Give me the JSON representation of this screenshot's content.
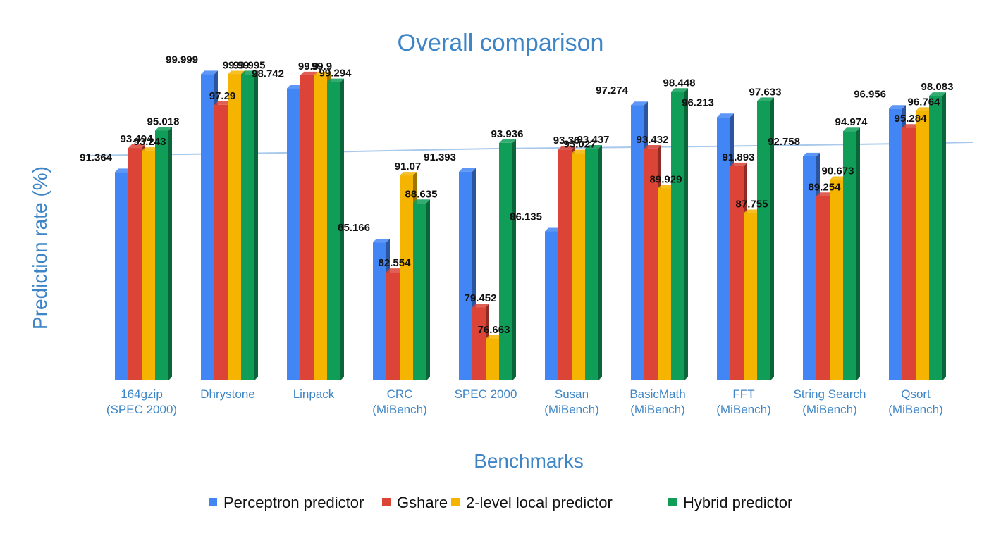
{
  "chart_data": {
    "type": "bar",
    "title": "Overall comparison",
    "xlabel": "Benchmarks",
    "ylabel": "Prediction rate (%)",
    "ylim": [
      73,
      103
    ],
    "grid": false,
    "legend_position": "bottom",
    "categories": [
      [
        "164gzip",
        "(SPEC 2000)"
      ],
      [
        "Dhrystone"
      ],
      [
        "Linpack"
      ],
      [
        "CRC",
        "(MiBench)"
      ],
      [
        "SPEC 2000"
      ],
      [
        "Susan",
        "(MiBench)"
      ],
      [
        "BasicMath",
        "(MiBench)"
      ],
      [
        "FFT",
        "(MiBench)"
      ],
      [
        "String Search",
        "(MiBench)"
      ],
      [
        "Qsort",
        "(MiBench)"
      ]
    ],
    "series": [
      {
        "name": "Perceptron predictor",
        "color": "#4285f4",
        "values": [
          91.364,
          99.999,
          98.742,
          85.166,
          91.393,
          86.135,
          97.274,
          96.213,
          92.758,
          96.956
        ],
        "labels": [
          "91.364",
          "99.999",
          "98.742",
          "85.166",
          "91.393",
          "86.135",
          "97.274",
          "96.213",
          "92.758",
          "96.956"
        ]
      },
      {
        "name": "Gshare",
        "color": "#db4437",
        "values": [
          93.494,
          97.29,
          99.9,
          82.554,
          79.452,
          93.36,
          93.432,
          91.893,
          89.254,
          95.284
        ],
        "labels": [
          "93.494",
          "97.29",
          "99.9",
          "82.554",
          "79.452",
          "93.36",
          "93.432",
          "91.893",
          "89.254",
          "95.284"
        ]
      },
      {
        "name": "2-level local predictor",
        "color": "#f4b400",
        "values": [
          93.243,
          99.99,
          99.9,
          91.07,
          76.663,
          93.027,
          89.929,
          87.755,
          90.673,
          96.764
        ],
        "labels": [
          "93.243",
          "99.99",
          "99.9",
          "91.07",
          "76.663",
          "93.027",
          "89.929",
          "87.755",
          "90.673",
          "96.764"
        ]
      },
      {
        "name": "Hybrid predictor",
        "color": "#0f9d58",
        "values": [
          95.018,
          99.995,
          99.294,
          88.635,
          93.936,
          93.437,
          98.448,
          97.633,
          94.974,
          98.083
        ],
        "labels": [
          "95.018",
          "99.995",
          "99.294",
          "88.635",
          "93.936",
          "93.437",
          "98.448",
          "97.633",
          "94.974",
          "98.083"
        ]
      }
    ]
  }
}
